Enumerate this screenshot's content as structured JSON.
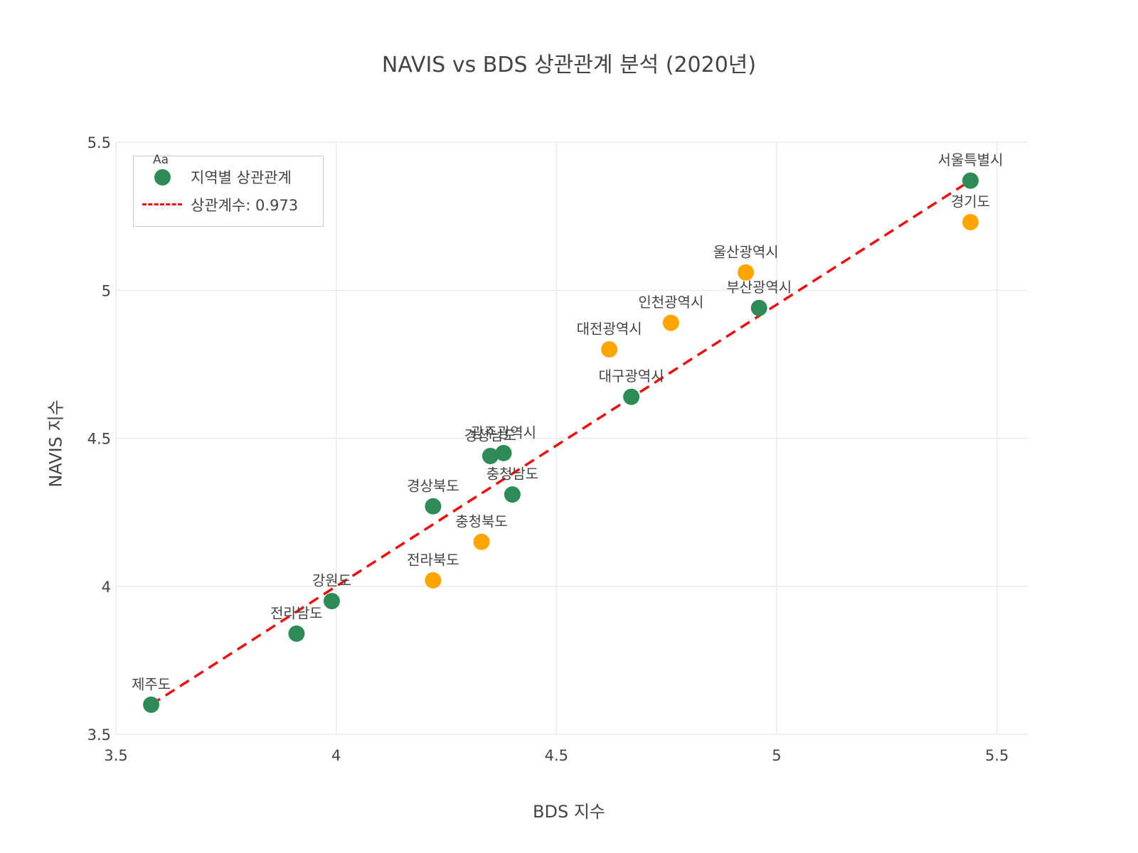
{
  "chart_data": {
    "type": "scatter",
    "title": "NAVIS vs BDS 상관관계 분석 (2020년)",
    "xlabel": "BDS 지수",
    "ylabel": "NAVIS 지수",
    "xlim": [
      3.5,
      5.57
    ],
    "ylim": [
      3.5,
      5.5
    ],
    "xticks": [
      "3.5",
      "4",
      "4.5",
      "5",
      "5.5"
    ],
    "yticks": [
      "3.5",
      "4",
      "4.5",
      "5",
      "5.5"
    ],
    "grid": true,
    "legend_position": "top-left",
    "legend_aa": "Aa",
    "colors": {
      "green": "#2e8b57",
      "orange": "#ffa500",
      "trend": "#e81010"
    },
    "series": [
      {
        "name": "지역별 상관관계",
        "points": [
          {
            "label": "서울특별시",
            "x": 5.44,
            "y": 5.37,
            "color": "orange_green_overlap"
          },
          {
            "label": "경기도",
            "x": 5.44,
            "y": 5.23,
            "color": "orange"
          },
          {
            "label": "울산광역시",
            "x": 4.93,
            "y": 5.06,
            "color": "orange"
          },
          {
            "label": "부산광역시",
            "x": 4.96,
            "y": 4.94,
            "color": "green"
          },
          {
            "label": "인천광역시",
            "x": 4.76,
            "y": 4.89,
            "color": "orange"
          },
          {
            "label": "대전광역시",
            "x": 4.62,
            "y": 4.8,
            "color": "orange"
          },
          {
            "label": "대구광역시",
            "x": 4.67,
            "y": 4.64,
            "color": "green"
          },
          {
            "label": "광주광역시",
            "x": 4.38,
            "y": 4.45,
            "color": "green"
          },
          {
            "label": "경상남도",
            "x": 4.35,
            "y": 4.44,
            "color": "green"
          },
          {
            "label": "충청남도",
            "x": 4.4,
            "y": 4.31,
            "color": "green"
          },
          {
            "label": "경상북도",
            "x": 4.22,
            "y": 4.27,
            "color": "green"
          },
          {
            "label": "충청북도",
            "x": 4.33,
            "y": 4.15,
            "color": "orange"
          },
          {
            "label": "전라북도",
            "x": 4.22,
            "y": 4.02,
            "color": "orange"
          },
          {
            "label": "강원도",
            "x": 3.99,
            "y": 3.95,
            "color": "green"
          },
          {
            "label": "전라남도",
            "x": 3.91,
            "y": 3.84,
            "color": "green"
          },
          {
            "label": "제주도",
            "x": 3.58,
            "y": 3.6,
            "color": "green"
          }
        ]
      },
      {
        "name": "상관계수: 0.973",
        "type": "line",
        "dash": "dashed",
        "x": [
          3.58,
          5.44
        ],
        "y": [
          3.6,
          5.37
        ]
      }
    ]
  }
}
